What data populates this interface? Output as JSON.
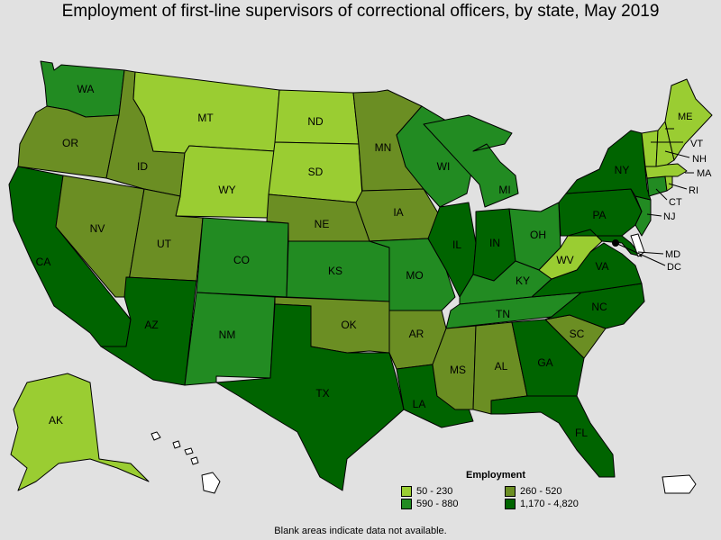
{
  "title": "Employment of first-line supervisors of correctional officers, by state, May 2019",
  "colors": {
    "c1": "#9acd32",
    "c2": "#6b8e23",
    "c3": "#228b22",
    "c4": "#006400",
    "blank": "#ffffff",
    "background": "#e1e1e1"
  },
  "legend": {
    "title": "Employment",
    "items": [
      {
        "label": "50 - 230",
        "color": "#9acd32"
      },
      {
        "label": "260 - 520",
        "color": "#6b8e23"
      },
      {
        "label": "590 - 880",
        "color": "#228b22"
      },
      {
        "label": "1,170 - 4,820",
        "color": "#006400"
      }
    ]
  },
  "note": "Blank areas indicate data not available.",
  "states": {
    "WA": "c3",
    "OR": "c2",
    "CA": "c4",
    "NV": "c2",
    "ID": "c2",
    "MT": "c1",
    "WY": "c1",
    "UT": "c2",
    "AZ": "c4",
    "CO": "c3",
    "NM": "c3",
    "ND": "c1",
    "SD": "c1",
    "NE": "c2",
    "KS": "c3",
    "OK": "c2",
    "TX": "c4",
    "MN": "c2",
    "IA": "c2",
    "MO": "c3",
    "AR": "c2",
    "LA": "c4",
    "WI": "c3",
    "IL": "c4",
    "MI": "c3",
    "IN": "c4",
    "OH": "c3",
    "KY": "c3",
    "TN": "c3",
    "MS": "c2",
    "AL": "c2",
    "GA": "c4",
    "FL": "c4",
    "SC": "c2",
    "NC": "c4",
    "VA": "c4",
    "WV": "c1",
    "MD": "c4",
    "DE": "blank",
    "DC": "blank",
    "PA": "c4",
    "NJ": "c3",
    "NY": "c4",
    "CT": "c3",
    "RI": "c1",
    "MA": "c1",
    "VT": "c1",
    "NH": "c1",
    "ME": "c1",
    "AK": "c1",
    "HI": "blank",
    "PR": "blank"
  },
  "labels": {
    "WA": "WA",
    "OR": "OR",
    "CA": "CA",
    "NV": "NV",
    "ID": "ID",
    "MT": "MT",
    "WY": "WY",
    "UT": "UT",
    "AZ": "AZ",
    "CO": "CO",
    "NM": "NM",
    "ND": "ND",
    "SD": "SD",
    "NE": "NE",
    "KS": "KS",
    "OK": "OK",
    "TX": "TX",
    "MN": "MN",
    "IA": "IA",
    "MO": "MO",
    "AR": "AR",
    "LA": "LA",
    "WI": "WI",
    "IL": "IL",
    "MI": "MI",
    "IN": "IN",
    "OH": "OH",
    "KY": "KY",
    "TN": "TN",
    "MS": "MS",
    "AL": "AL",
    "GA": "GA",
    "FL": "FL",
    "SC": "SC",
    "NC": "NC",
    "VA": "VA",
    "WV": "WV",
    "MD": "MD",
    "DC": "DC",
    "PA": "PA",
    "NJ": "NJ",
    "NY": "NY",
    "CT": "CT",
    "RI": "RI",
    "MA": "MA",
    "VT": "VT",
    "NH": "NH",
    "ME": "ME",
    "AK": "AK"
  }
}
